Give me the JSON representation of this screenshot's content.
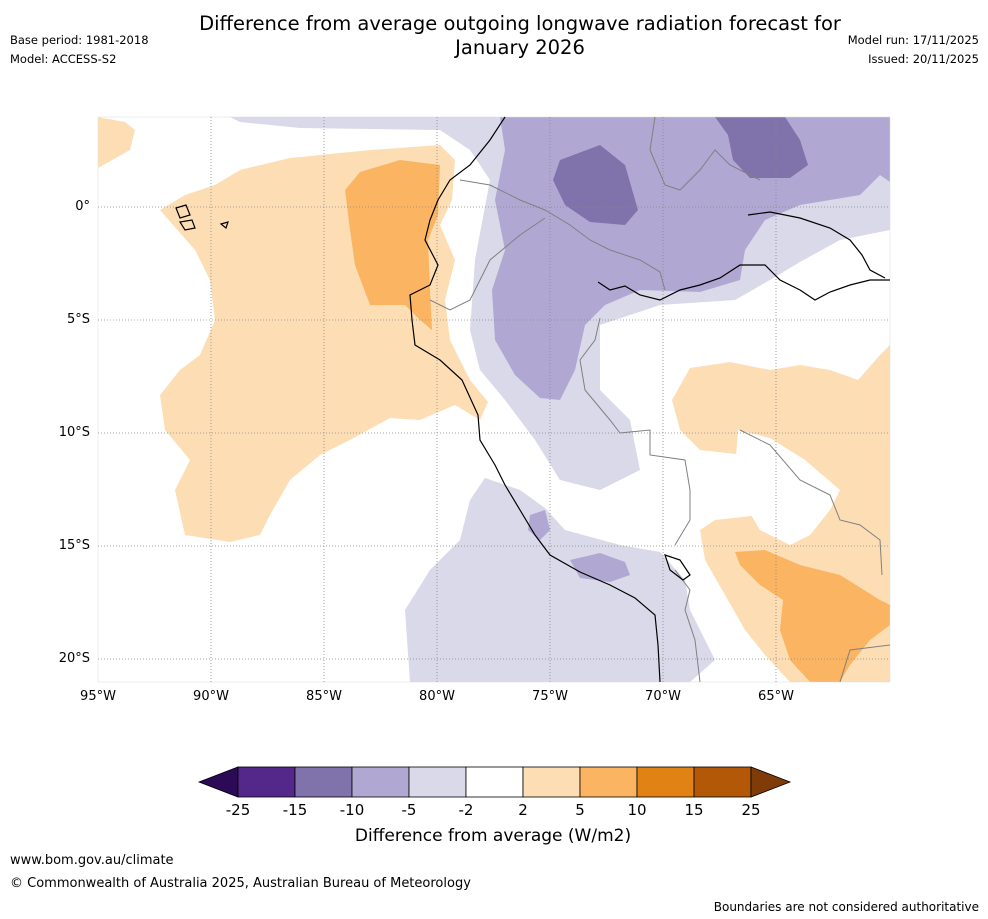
{
  "header": {
    "title_line1": "Difference from average outgoing longwave radiation forecast for",
    "title_line2": "January 2026",
    "base_period": "Base period: 1981-2018",
    "model": "Model: ACCESS-S2",
    "model_run": "Model run: 17/11/2025",
    "issued": "Issued: 20/11/2025"
  },
  "map": {
    "lat_labels": [
      "0°",
      "5°S",
      "10°S",
      "15°S",
      "20°S"
    ],
    "lon_labels": [
      "95°W",
      "90°W",
      "85°W",
      "80°W",
      "75°W",
      "70°W",
      "65°W"
    ]
  },
  "colorbar": {
    "ticks": [
      "-25",
      "-15",
      "-10",
      "-5",
      "-2",
      "2",
      "5",
      "10",
      "15",
      "25"
    ],
    "colors": [
      "#2d0a55",
      "#54288a",
      "#8072ab",
      "#b0a8d2",
      "#d9d9e9",
      "#ffffff",
      "#fddeb4",
      "#fbb461",
      "#e08214",
      "#b35806",
      "#7f3b08"
    ],
    "label": "Difference from average (W/m2)"
  },
  "footer": {
    "website": "www.bom.gov.au/climate",
    "copyright": "© Commonwealth of Australia 2025, Australian Bureau of Meteorology",
    "disclaimer": "Boundaries are not considered authoritative"
  }
}
